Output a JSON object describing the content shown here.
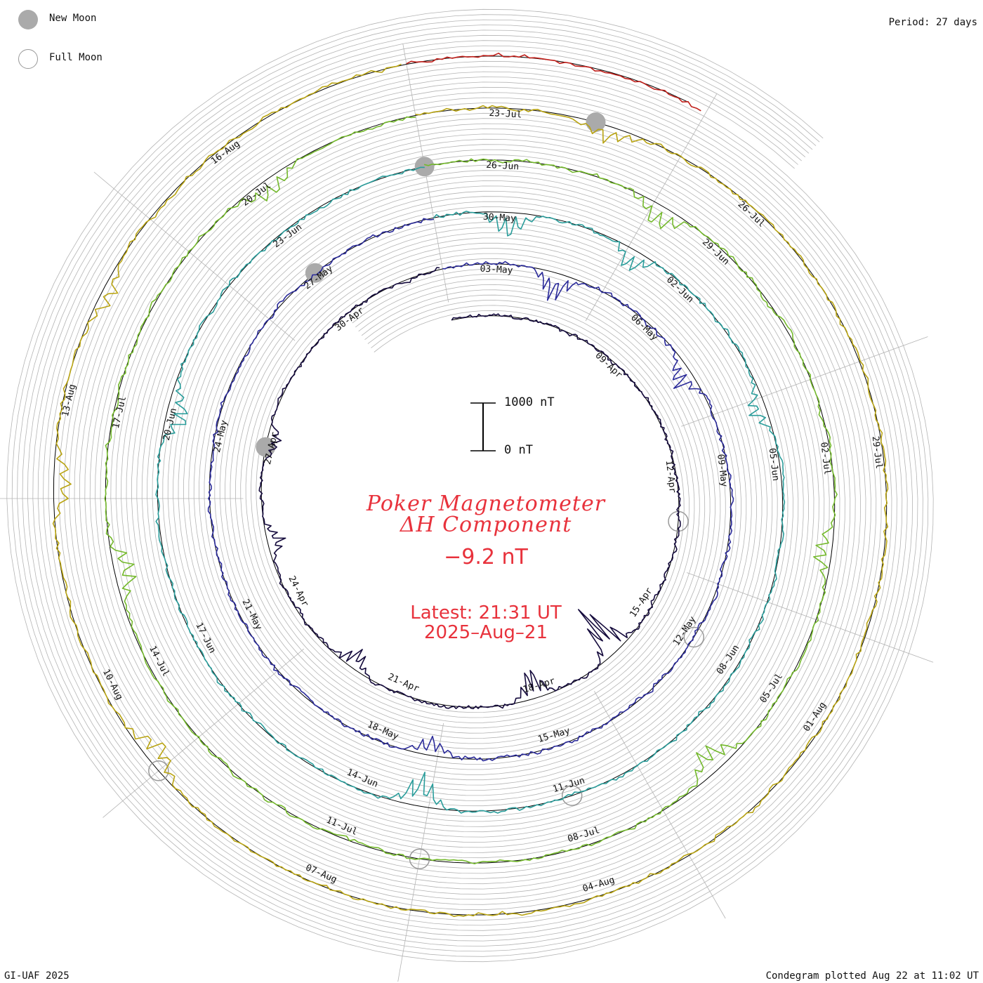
{
  "legend": {
    "new_moon_label": "New Moon",
    "full_moon_label": "Full Moon"
  },
  "period_text": "Period: 27 days",
  "credit": "GI-UAF 2025",
  "plotted_text": "Condegram plotted Aug 22 at 11:02 UT",
  "title_line1": "Poker Magnetometer",
  "title_line2": "ΔH Component",
  "current_value": "−9.2 nT",
  "latest_line1": "Latest: 21:31 UT",
  "latest_line2": "2025–Aug–21",
  "scale": {
    "top_label": "1000 nT",
    "bottom_label": "0 nT"
  },
  "colors": {
    "title": "#e8323c",
    "grid": "#b4b4b4",
    "baseline": "#000000",
    "new_moon": "#aaaaaa",
    "full_moon": "#999999"
  },
  "chart_data": {
    "type": "line",
    "layout": "spiral condegram",
    "period_days": 27,
    "units": "nT",
    "start_date": "2025-04-05",
    "end_date": "2025-08-21",
    "revolutions": [
      {
        "start": "2025-04-05",
        "color": "#140a3c"
      },
      {
        "start": "2025-05-02",
        "color": "#2b2b9a"
      },
      {
        "start": "2025-05-29",
        "color": "#2a9d9b"
      },
      {
        "start": "2025-06-25",
        "color": "#74b92c"
      },
      {
        "start": "2025-07-22",
        "color": "#b9a413"
      },
      {
        "start": "2025-08-18",
        "color": "#c0201b"
      }
    ],
    "date_labels": [
      "09-Apr",
      "12-Apr",
      "15-Apr",
      "18-Apr",
      "21-Apr",
      "24-Apr",
      "27-Apr",
      "30-Apr",
      "03-May",
      "06-May",
      "09-May",
      "12-May",
      "15-May",
      "18-May",
      "21-May",
      "24-May",
      "27-May",
      "30-May",
      "02-Jun",
      "05-Jun",
      "08-Jun",
      "11-Jun",
      "14-Jun",
      "17-Jun",
      "20-Jun",
      "23-Jun",
      "26-Jun",
      "29-Jun",
      "02-Jul",
      "05-Jul",
      "08-Jul",
      "11-Jul",
      "14-Jul",
      "17-Jul",
      "20-Jul",
      "23-Jul",
      "26-Jul",
      "29-Jul",
      "01-Aug",
      "04-Aug",
      "07-Aug",
      "10-Aug",
      "13-Aug",
      "16-Aug"
    ],
    "moon_phases": [
      {
        "date": "2025-04-13",
        "phase": "full"
      },
      {
        "date": "2025-04-27",
        "phase": "new"
      },
      {
        "date": "2025-05-12",
        "phase": "full"
      },
      {
        "date": "2025-05-27",
        "phase": "new"
      },
      {
        "date": "2025-06-11",
        "phase": "full"
      },
      {
        "date": "2025-06-25",
        "phase": "new"
      },
      {
        "date": "2025-07-10",
        "phase": "full"
      },
      {
        "date": "2025-07-24",
        "phase": "new"
      },
      {
        "date": "2025-08-09",
        "phase": "full"
      }
    ],
    "disturbances": [
      {
        "date": "2025-04-16",
        "peak_nT": -1200
      },
      {
        "date": "2025-04-18",
        "peak_nT": -700
      },
      {
        "date": "2025-04-22",
        "peak_nT": -500
      },
      {
        "date": "2025-04-25",
        "peak_nT": -350
      },
      {
        "date": "2025-04-27",
        "peak_nT": -300
      },
      {
        "date": "2025-05-04",
        "peak_nT": -600
      },
      {
        "date": "2025-05-07",
        "peak_nT": -500
      },
      {
        "date": "2025-05-17",
        "peak_nT": -450
      },
      {
        "date": "2025-05-30",
        "peak_nT": -600
      },
      {
        "date": "2025-06-01",
        "peak_nT": -500
      },
      {
        "date": "2025-06-04",
        "peak_nT": -400
      },
      {
        "date": "2025-06-13",
        "peak_nT": -700
      },
      {
        "date": "2025-06-20",
        "peak_nT": -500
      },
      {
        "date": "2025-06-28",
        "peak_nT": -500
      },
      {
        "date": "2025-07-03",
        "peak_nT": -400
      },
      {
        "date": "2025-07-06",
        "peak_nT": -600
      },
      {
        "date": "2025-07-15",
        "peak_nT": -500
      },
      {
        "date": "2025-07-20",
        "peak_nT": -450
      },
      {
        "date": "2025-07-24",
        "peak_nT": -350
      },
      {
        "date": "2025-08-09",
        "peak_nT": -500
      },
      {
        "date": "2025-08-12",
        "peak_nT": -400
      },
      {
        "date": "2025-08-14",
        "peak_nT": -350
      }
    ]
  }
}
